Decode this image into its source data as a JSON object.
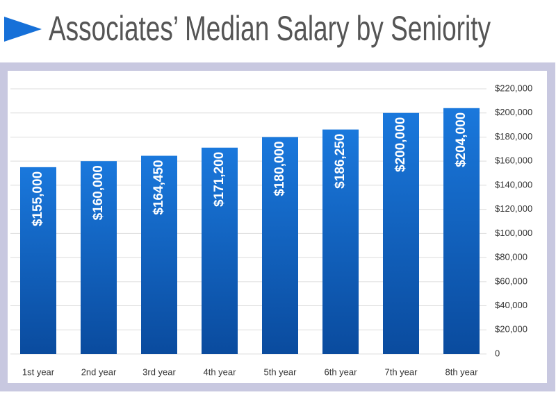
{
  "chart_data": {
    "type": "bar",
    "title": "Associates’ Median Salary by Seniority",
    "categories": [
      "1st year",
      "2nd year",
      "3rd year",
      "4th year",
      "5th year",
      "6th year",
      "7th year",
      "8th year"
    ],
    "values": [
      155000,
      160000,
      164450,
      171200,
      180000,
      186250,
      200000,
      204000
    ],
    "value_labels": [
      "$155,000",
      "$160,000",
      "$164,450",
      "$171,200",
      "$180,000",
      "$186,250",
      "$200,000",
      "$204,000"
    ],
    "color": "#1a78dc",
    "ylim": [
      0,
      220000
    ],
    "yticks": [
      0,
      {
        "value": 20000,
        "label": "$20,000"
      },
      {
        "value": 40000,
        "label": "$40,000"
      },
      {
        "value": 60000,
        "label": "$60,000"
      },
      {
        "value": 80000,
        "label": "$80,000"
      },
      {
        "value": 100000,
        "label": "$100,000"
      },
      {
        "value": 120000,
        "label": "$120,000"
      },
      {
        "value": 140000,
        "label": "$140,000"
      },
      {
        "value": 160000,
        "label": "$160,000"
      },
      {
        "value": 180000,
        "label": "$180,000"
      },
      {
        "value": 200000,
        "label": "$200,000"
      },
      {
        "value": 220000,
        "label": "$220,000"
      }
    ],
    "grid": true
  }
}
